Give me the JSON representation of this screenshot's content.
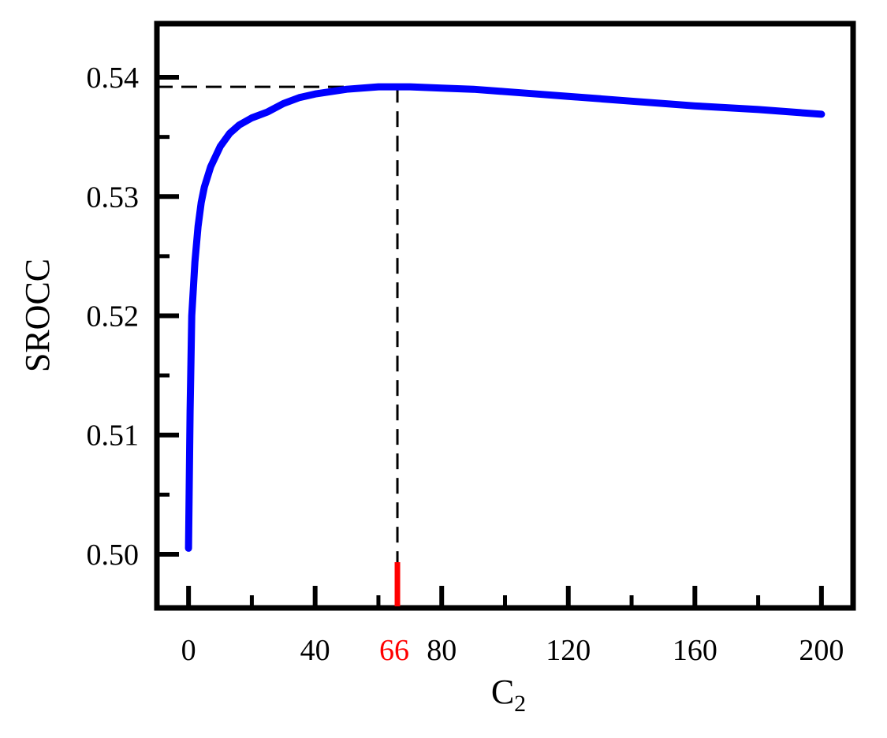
{
  "chart_data": {
    "type": "line",
    "title": "",
    "xlabel": "C",
    "xlabel_subscript": "2",
    "ylabel": "SROCC",
    "xlim": [
      -10,
      210
    ],
    "ylim": [
      0.4955,
      0.5445
    ],
    "x_ticks": [
      0,
      40,
      80,
      120,
      160,
      200
    ],
    "x_minor_ticks": [
      20,
      60,
      100,
      140,
      180
    ],
    "y_ticks": [
      0.5,
      0.51,
      0.52,
      0.53,
      0.54
    ],
    "y_tick_labels": [
      "0.50",
      "0.51",
      "0.52",
      "0.53",
      "0.54"
    ],
    "y_minor_ticks": [
      0.505,
      0.515,
      0.525,
      0.535
    ],
    "grid": false,
    "legend": "none",
    "series": [
      {
        "color": "#0000ff",
        "x": [
          0,
          0.5,
          1,
          2,
          3,
          4,
          5,
          7,
          10,
          13,
          16,
          20,
          25,
          30,
          35,
          40,
          50,
          60,
          66,
          70,
          80,
          90,
          100,
          110,
          120,
          140,
          160,
          180,
          200
        ],
        "y": [
          0.5005,
          0.512,
          0.52,
          0.5245,
          0.5275,
          0.5295,
          0.5308,
          0.5325,
          0.5342,
          0.5353,
          0.536,
          0.5366,
          0.5371,
          0.5378,
          0.5383,
          0.5386,
          0.539,
          0.5392,
          0.5392,
          0.5392,
          0.5391,
          0.539,
          0.5388,
          0.5386,
          0.5384,
          0.538,
          0.5376,
          0.5373,
          0.5369
        ]
      }
    ],
    "annotation": {
      "x": 66,
      "y": 0.5392,
      "x_label": "66",
      "color": "#ff0000",
      "line_color": "#000000",
      "line_style": "dashed"
    }
  }
}
